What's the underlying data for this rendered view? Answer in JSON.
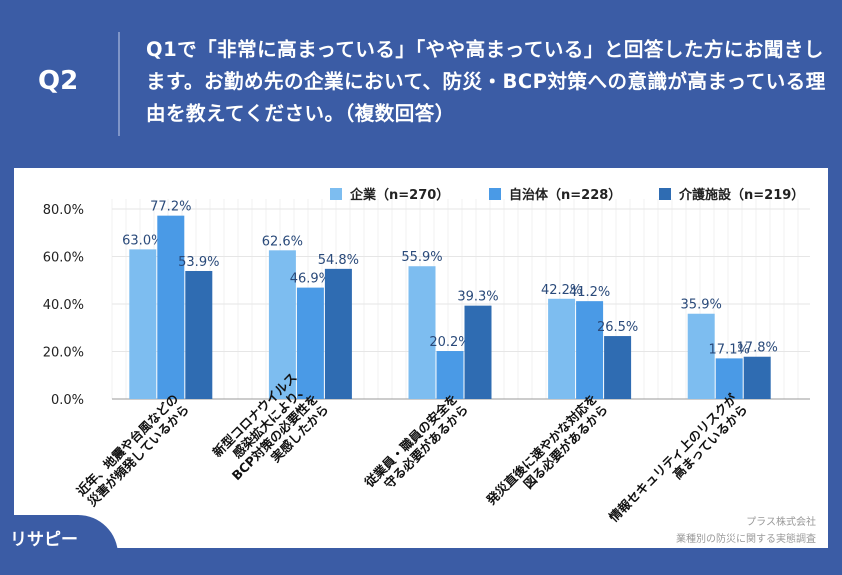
{
  "header": {
    "badge": "Q2",
    "question": "Q1で「非常に高まっている」「やや高まっている」と回答した方にお聞きします。お勤め先の企業において、防災・BCP対策への意識が高まっている理由を教えてください。（複数回答）"
  },
  "chart_data": {
    "type": "bar",
    "categories": [
      "近年、地震や台風などの\n災害が頻発しているから",
      "新型コロナウイルス\n感染拡大により、\nBCP対策の必要性を\n実感したから",
      "従業員・職員の安全を\n守る必要があるから",
      "発災直後に速やかな対応を\n図る必要があるから",
      "情報セキュリティ上のリスクが\n高まっているから"
    ],
    "series": [
      {
        "name": "企業（n=270）",
        "color": "#7dbdf0",
        "values": [
          63.0,
          62.6,
          55.9,
          42.2,
          35.9
        ]
      },
      {
        "name": "自治体（n=228）",
        "color": "#4a9ae6",
        "values": [
          77.2,
          46.9,
          20.2,
          41.2,
          17.1
        ]
      },
      {
        "name": "介護施設（n=219）",
        "color": "#2f6cb2",
        "values": [
          53.9,
          54.8,
          39.3,
          26.5,
          17.8
        ]
      }
    ],
    "ylim": [
      0,
      80
    ],
    "yticks": [
      "0.0%",
      "20.0%",
      "40.0%",
      "60.0%",
      "80.0%"
    ],
    "grid": true,
    "legend": "top-right"
  },
  "footer": {
    "logo": "リサピー",
    "company": "プラス株式会社",
    "survey": "業種別の防災に関する実態調査"
  }
}
